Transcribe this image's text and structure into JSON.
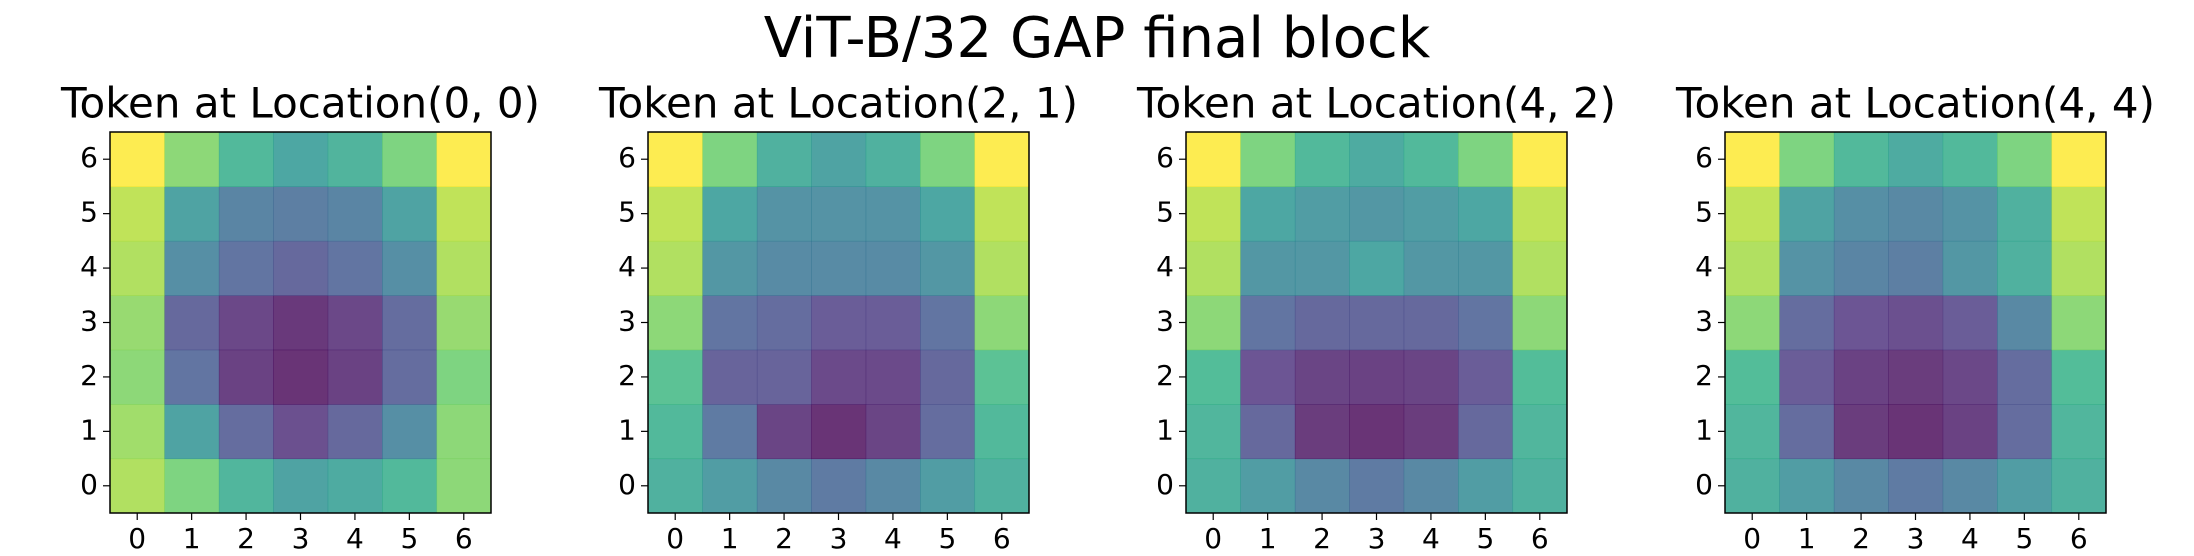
{
  "suptitle": "ViT-B/32 GAP final block",
  "chart_data": [
    {
      "type": "heatmap",
      "title": "Token at Location(0, 0)",
      "colormap": "viridis",
      "xticks": [
        0,
        1,
        2,
        3,
        4,
        5,
        6
      ],
      "yticks": [
        0,
        1,
        2,
        3,
        4,
        5,
        6
      ],
      "z": [
        [
          0.85,
          0.75,
          0.58,
          0.48,
          0.52,
          0.6,
          0.78
        ],
        [
          0.82,
          0.48,
          0.22,
          0.1,
          0.2,
          0.38,
          0.78
        ],
        [
          0.78,
          0.25,
          0.05,
          0.0,
          0.05,
          0.22,
          0.75
        ],
        [
          0.8,
          0.2,
          0.07,
          0.02,
          0.07,
          0.22,
          0.8
        ],
        [
          0.85,
          0.38,
          0.25,
          0.2,
          0.25,
          0.38,
          0.85
        ],
        [
          0.88,
          0.48,
          0.33,
          0.3,
          0.33,
          0.48,
          0.88
        ],
        [
          1.0,
          0.78,
          0.6,
          0.5,
          0.57,
          0.75,
          1.0
        ]
      ]
    },
    {
      "type": "heatmap",
      "title": "Token at Location(2, 1)",
      "colormap": "viridis",
      "xticks": [
        0,
        1,
        2,
        3,
        4,
        5,
        6
      ],
      "yticks": [
        0,
        1,
        2,
        3,
        4,
        5,
        6
      ],
      "z": [
        [
          0.55,
          0.45,
          0.35,
          0.28,
          0.35,
          0.45,
          0.55
        ],
        [
          0.6,
          0.28,
          0.06,
          0.0,
          0.06,
          0.22,
          0.6
        ],
        [
          0.65,
          0.18,
          0.18,
          0.08,
          0.08,
          0.2,
          0.65
        ],
        [
          0.78,
          0.25,
          0.22,
          0.15,
          0.15,
          0.25,
          0.78
        ],
        [
          0.85,
          0.42,
          0.36,
          0.36,
          0.36,
          0.42,
          0.85
        ],
        [
          0.88,
          0.5,
          0.4,
          0.4,
          0.4,
          0.5,
          0.88
        ],
        [
          1.0,
          0.75,
          0.55,
          0.48,
          0.55,
          0.75,
          1.0
        ]
      ]
    },
    {
      "type": "heatmap",
      "title": "Token at Location(4, 2)",
      "colormap": "viridis",
      "xticks": [
        0,
        1,
        2,
        3,
        4,
        5,
        6
      ],
      "yticks": [
        0,
        1,
        2,
        3,
        4,
        5,
        6
      ],
      "z": [
        [
          0.55,
          0.45,
          0.35,
          0.28,
          0.35,
          0.45,
          0.55
        ],
        [
          0.58,
          0.2,
          0.03,
          0.0,
          0.03,
          0.2,
          0.58
        ],
        [
          0.62,
          0.12,
          0.06,
          0.05,
          0.06,
          0.15,
          0.62
        ],
        [
          0.78,
          0.25,
          0.2,
          0.2,
          0.2,
          0.25,
          0.78
        ],
        [
          0.85,
          0.42,
          0.42,
          0.5,
          0.42,
          0.42,
          0.85
        ],
        [
          0.88,
          0.5,
          0.45,
          0.42,
          0.45,
          0.5,
          0.88
        ],
        [
          1.0,
          0.75,
          0.6,
          0.52,
          0.6,
          0.75,
          1.0
        ]
      ]
    },
    {
      "type": "heatmap",
      "title": "Token at Location(4, 4)",
      "colormap": "viridis",
      "xticks": [
        0,
        1,
        2,
        3,
        4,
        5,
        6
      ],
      "yticks": [
        0,
        1,
        2,
        3,
        4,
        5,
        6
      ],
      "z": [
        [
          0.55,
          0.45,
          0.35,
          0.28,
          0.35,
          0.45,
          0.55
        ],
        [
          0.58,
          0.22,
          0.03,
          0.0,
          0.05,
          0.22,
          0.58
        ],
        [
          0.62,
          0.15,
          0.05,
          0.03,
          0.07,
          0.22,
          0.62
        ],
        [
          0.78,
          0.22,
          0.12,
          0.1,
          0.15,
          0.35,
          0.78
        ],
        [
          0.85,
          0.4,
          0.33,
          0.3,
          0.42,
          0.55,
          0.85
        ],
        [
          0.88,
          0.48,
          0.38,
          0.35,
          0.4,
          0.55,
          0.88
        ],
        [
          1.0,
          0.75,
          0.6,
          0.52,
          0.6,
          0.75,
          1.0
        ]
      ]
    }
  ]
}
